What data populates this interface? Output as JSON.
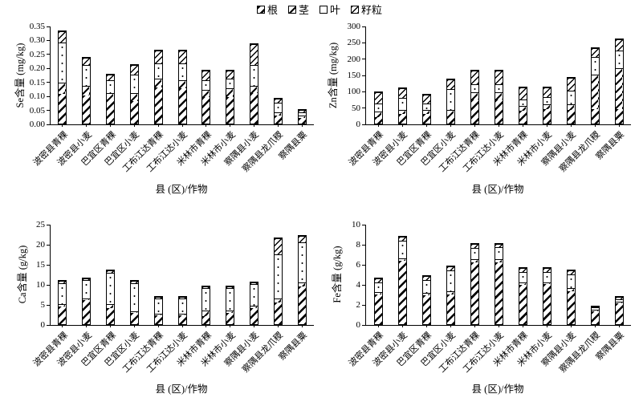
{
  "legend": {
    "items": [
      {
        "label": "根",
        "pattern": "root"
      },
      {
        "label": "茎",
        "pattern": "stem"
      },
      {
        "label": "叶",
        "pattern": "leaf"
      },
      {
        "label": "籽粒",
        "pattern": "grain"
      }
    ]
  },
  "chart_data": [
    {
      "type": "stacked-bar",
      "element": "Se",
      "ylabel": "Se含量 (mg/kg)",
      "xlabel": "县 (区)/作物",
      "ylim": [
        0,
        0.35
      ],
      "yticks": [
        0,
        0.05,
        0.1,
        0.15,
        0.2,
        0.25,
        0.3,
        0.35
      ],
      "ytick_labels": [
        "0.00",
        "0.05",
        "0.10",
        "0.15",
        "0.20",
        "0.25",
        "0.30",
        "0.35"
      ],
      "categories": [
        "波密县青稞",
        "波密县小麦",
        "巴宜区青稞",
        "巴宜区小麦",
        "工布江达青稞",
        "工布江达小麦",
        "米林市青稞",
        "米林市小麦",
        "察隅县小麦",
        "察隅县龙爪稷",
        "察隅县粟"
      ],
      "series": [
        {
          "name": "根",
          "values": [
            0.105,
            0.1,
            0.085,
            0.08,
            0.13,
            0.125,
            0.095,
            0.095,
            0.11,
            0.03,
            0.02
          ]
        },
        {
          "name": "茎",
          "values": [
            0.04,
            0.035,
            0.025,
            0.03,
            0.03,
            0.03,
            0.025,
            0.03,
            0.025,
            0.01,
            0.01
          ]
        },
        {
          "name": "叶",
          "values": [
            0.145,
            0.075,
            0.045,
            0.065,
            0.055,
            0.06,
            0.035,
            0.035,
            0.075,
            0.035,
            0.01
          ]
        },
        {
          "name": "籽粒",
          "values": [
            0.04,
            0.025,
            0.02,
            0.035,
            0.045,
            0.045,
            0.035,
            0.03,
            0.075,
            0.015,
            0.01
          ]
        }
      ]
    },
    {
      "type": "stacked-bar",
      "element": "Zn",
      "ylabel": "Zn含量 (mg/kg)",
      "xlabel": "县 (区)/作物",
      "ylim": [
        0,
        300
      ],
      "yticks": [
        0,
        50,
        100,
        150,
        200,
        250,
        300
      ],
      "ytick_labels": [
        "0",
        "50",
        "100",
        "150",
        "200",
        "250",
        "300"
      ],
      "categories": [
        "波密县青稞",
        "波密县小麦",
        "巴宜区青稞",
        "巴宜区小麦",
        "工布江达青稞",
        "工布江达小麦",
        "米林市青稞",
        "米林市小麦",
        "察隅县小麦",
        "察隅县龙爪稷",
        "察隅县粟"
      ],
      "series": [
        {
          "name": "根",
          "values": [
            20,
            30,
            30,
            22,
            75,
            75,
            40,
            45,
            42,
            45,
            45
          ]
        },
        {
          "name": "茎",
          "values": [
            17,
            13,
            13,
            20,
            20,
            20,
            15,
            15,
            18,
            105,
            125
          ]
        },
        {
          "name": "叶",
          "values": [
            25,
            35,
            19,
            63,
            25,
            25,
            20,
            20,
            40,
            55,
            55
          ]
        },
        {
          "name": "籽粒",
          "values": [
            33,
            30,
            26,
            30,
            42,
            42,
            35,
            30,
            40,
            27,
            33
          ]
        }
      ]
    },
    {
      "type": "stacked-bar",
      "element": "Ca",
      "ylabel": "Ca含量 (g/kg)",
      "xlabel": "县 (区)/作物",
      "ylim": [
        0,
        25
      ],
      "yticks": [
        0,
        5,
        10,
        15,
        20,
        25
      ],
      "ytick_labels": [
        "0",
        "5",
        "10",
        "15",
        "20",
        "25"
      ],
      "categories": [
        "波密县青稞",
        "波密县小麦",
        "巴宜区青稞",
        "巴宜区小麦",
        "工布江达青稞",
        "工布江达小麦",
        "米林市青稞",
        "米林市小麦",
        "察隅县小麦",
        "察隅县龙爪稷",
        "察隅县粟"
      ],
      "series": [
        {
          "name": "根",
          "values": [
            4.5,
            6.0,
            4.0,
            2.8,
            2.2,
            2.2,
            2.0,
            2.8,
            4.0,
            5.5,
            9.5
          ]
        },
        {
          "name": "茎",
          "values": [
            0.5,
            0.5,
            1.0,
            0.5,
            0.5,
            0.5,
            1.5,
            0.7,
            0.7,
            1.0,
            1.0
          ]
        },
        {
          "name": "叶",
          "values": [
            5.2,
            4.5,
            7.8,
            6.9,
            3.7,
            3.7,
            5.5,
            5.5,
            5.3,
            11.0,
            10.0
          ]
        },
        {
          "name": "籽粒",
          "values": [
            0.6,
            0.5,
            0.6,
            0.6,
            0.4,
            0.4,
            0.5,
            0.5,
            0.5,
            4.0,
            1.5
          ]
        }
      ]
    },
    {
      "type": "stacked-bar",
      "element": "Fe",
      "ylabel": "Fe含量 (g/kg)",
      "xlabel": "县 (区)/作物",
      "ylim": [
        0,
        10
      ],
      "yticks": [
        0,
        2,
        4,
        6,
        8,
        10
      ],
      "ytick_labels": [
        "0",
        "2",
        "4",
        "6",
        "8",
        "10"
      ],
      "categories": [
        "波密县青稞",
        "波密县小麦",
        "巴宜区青稞",
        "巴宜区小麦",
        "工布江达青稞",
        "工布江达小麦",
        "米林市青稞",
        "米林市小麦",
        "察隅县小麦",
        "察隅县龙爪稷",
        "察隅县粟"
      ],
      "series": [
        {
          "name": "根",
          "values": [
            3.0,
            6.3,
            2.9,
            3.0,
            6.2,
            6.2,
            3.9,
            4.0,
            3.3,
            1.3,
            2.1
          ]
        },
        {
          "name": "茎",
          "values": [
            0.2,
            0.3,
            0.2,
            0.3,
            0.3,
            0.3,
            0.3,
            0.2,
            0.3,
            0.15,
            0.15
          ]
        },
        {
          "name": "叶",
          "values": [
            1.0,
            1.7,
            1.3,
            2.1,
            1.1,
            1.2,
            1.0,
            1.0,
            1.4,
            0.2,
            0.25
          ]
        },
        {
          "name": "籽粒",
          "values": [
            0.4,
            0.4,
            0.4,
            0.4,
            0.4,
            0.3,
            0.4,
            0.4,
            0.4,
            0.15,
            0.2
          ]
        }
      ]
    }
  ]
}
